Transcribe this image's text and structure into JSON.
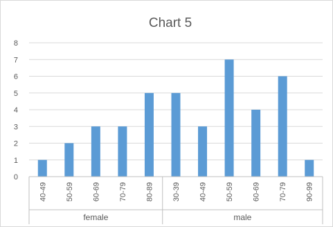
{
  "chart_data": {
    "type": "bar",
    "title": "Chart 5",
    "xlabel": "",
    "ylabel": "",
    "ylim": [
      0,
      8
    ],
    "yticks": [
      0,
      1,
      2,
      3,
      4,
      5,
      6,
      7,
      8
    ],
    "grid": true,
    "legend": "none",
    "bar_color": "#5b9bd5",
    "groups": [
      {
        "name": "female",
        "categories": [
          "40-49",
          "50-59",
          "60-69",
          "70-79",
          "80-89"
        ],
        "values": [
          1,
          2,
          3,
          3,
          5
        ]
      },
      {
        "name": "male",
        "categories": [
          "30-39",
          "40-49",
          "50-59",
          "60-69",
          "70-79",
          "90-99"
        ],
        "values": [
          5,
          3,
          7,
          4,
          6,
          1
        ]
      }
    ]
  }
}
